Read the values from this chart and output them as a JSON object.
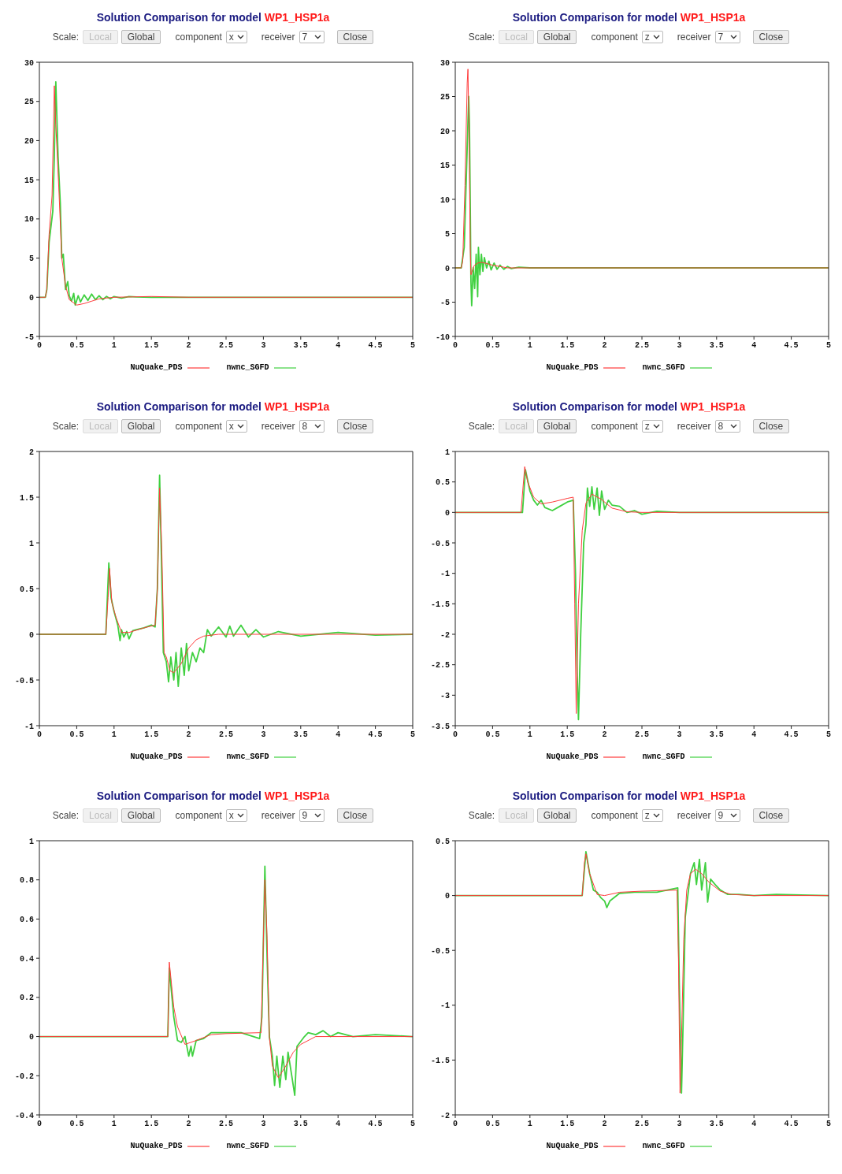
{
  "chart_data": [
    {
      "type": "line",
      "title": "Solution Comparison for model WP1_HSP1a",
      "annotations": [
        "Scale:",
        "Local",
        "Global",
        "component",
        "x",
        "receiver",
        "7",
        "Close"
      ],
      "legend": "bottom",
      "xlim": [
        0,
        5
      ],
      "xticks": [
        0,
        0.5,
        1,
        1.5,
        2,
        2.5,
        3,
        3.5,
        4,
        4.5,
        5
      ],
      "ylim": [
        -5,
        30
      ],
      "yticks": [
        -5,
        0,
        5,
        10,
        15,
        20,
        25,
        30
      ],
      "series": [
        {
          "name": "NuQuake_PDS",
          "color": "#ff3b3b",
          "x": [
            0,
            0.08,
            0.1,
            0.13,
            0.17,
            0.2,
            0.22,
            0.26,
            0.3,
            0.35,
            0.4,
            0.5,
            0.6,
            0.7,
            0.8,
            0.9,
            1.0,
            1.5,
            2,
            5
          ],
          "values": [
            0,
            0,
            1,
            8,
            13,
            27,
            22,
            14,
            5,
            1.5,
            -0.3,
            -1,
            -0.8,
            -0.5,
            -0.2,
            -0.1,
            0,
            0.1,
            0,
            0
          ]
        },
        {
          "name": "nwnc_SGFD",
          "color": "#40d040",
          "x": [
            0,
            0.08,
            0.1,
            0.13,
            0.18,
            0.2,
            0.22,
            0.25,
            0.28,
            0.3,
            0.32,
            0.35,
            0.38,
            0.4,
            0.43,
            0.46,
            0.48,
            0.52,
            0.55,
            0.6,
            0.65,
            0.7,
            0.75,
            0.8,
            0.85,
            0.9,
            0.95,
            1.0,
            1.1,
            1.2,
            1.3,
            1.5,
            5
          ],
          "values": [
            0,
            0,
            1,
            7,
            11,
            18,
            27.5,
            18,
            12,
            5,
            5.5,
            1,
            2,
            0.2,
            -0.5,
            0.5,
            -1,
            0.2,
            -0.6,
            0.3,
            -0.4,
            0.4,
            -0.3,
            0.2,
            -0.3,
            0.1,
            -0.2,
            0.1,
            -0.1,
            0.1,
            0.05,
            0,
            0
          ]
        }
      ]
    },
    {
      "type": "line",
      "title": "Solution Comparison for model WP1_HSP1a",
      "annotations": [
        "Scale:",
        "Local",
        "Global",
        "component",
        "z",
        "receiver",
        "7",
        "Close"
      ],
      "legend": "bottom",
      "xlim": [
        0,
        5
      ],
      "xticks": [
        0,
        0.5,
        1,
        1.5,
        2,
        2.5,
        3,
        3.5,
        4,
        4.5,
        5
      ],
      "ylim": [
        -10,
        30
      ],
      "yticks": [
        -10,
        -5,
        0,
        5,
        10,
        15,
        20,
        25,
        30
      ],
      "series": [
        {
          "name": "NuQuake_PDS",
          "color": "#ff3b3b",
          "x": [
            0,
            0.08,
            0.1,
            0.13,
            0.16,
            0.17,
            0.19,
            0.2,
            0.21,
            0.25,
            0.3,
            0.35,
            0.4,
            0.5,
            0.6,
            0.7,
            5
          ],
          "values": [
            0,
            0,
            1,
            12,
            27,
            29,
            15,
            3,
            -1,
            0.3,
            0.7,
            0.8,
            0.7,
            0.4,
            0.2,
            0,
            0
          ]
        },
        {
          "name": "nwnc_SGFD",
          "color": "#40d040",
          "x": [
            0,
            0.08,
            0.12,
            0.15,
            0.18,
            0.19,
            0.2,
            0.21,
            0.22,
            0.24,
            0.26,
            0.28,
            0.3,
            0.31,
            0.33,
            0.35,
            0.37,
            0.39,
            0.42,
            0.45,
            0.48,
            0.52,
            0.56,
            0.6,
            0.65,
            0.7,
            0.75,
            0.85,
            1,
            5
          ],
          "values": [
            0,
            0,
            3,
            14,
            25,
            21,
            10,
            -2,
            -5.5,
            0,
            -3,
            2,
            -4.2,
            3,
            -1,
            2,
            -0.5,
            1.5,
            0,
            1,
            -0.3,
            0.7,
            -0.2,
            0.4,
            -0.2,
            0.2,
            -0.1,
            0.1,
            0,
            0
          ]
        }
      ]
    },
    {
      "type": "line",
      "title": "Solution Comparison for model WP1_HSP1a",
      "annotations": [
        "Scale:",
        "Local",
        "Global",
        "component",
        "x",
        "receiver",
        "8",
        "Close"
      ],
      "legend": "bottom",
      "xlim": [
        0,
        5
      ],
      "xticks": [
        0,
        0.5,
        1,
        1.5,
        2,
        2.5,
        3,
        3.5,
        4,
        4.5,
        5
      ],
      "ylim": [
        -1,
        2
      ],
      "yticks": [
        -1,
        -0.5,
        0,
        0.5,
        1,
        1.5,
        2
      ],
      "series": [
        {
          "name": "NuQuake_PDS",
          "color": "#ff3b3b",
          "x": [
            0,
            0.89,
            0.92,
            0.94,
            0.97,
            1.02,
            1.1,
            1.2,
            1.4,
            1.55,
            1.58,
            1.61,
            1.64,
            1.67,
            1.7,
            1.75,
            1.8,
            1.9,
            2.0,
            2.1,
            2.2,
            2.4,
            5
          ],
          "values": [
            0,
            0,
            0.4,
            0.72,
            0.35,
            0.2,
            0.02,
            0.02,
            0.07,
            0.1,
            0.5,
            1.6,
            0.9,
            -0.2,
            -0.25,
            -0.4,
            -0.42,
            -0.32,
            -0.15,
            -0.06,
            -0.02,
            0,
            0
          ]
        },
        {
          "name": "nwnc_SGFD",
          "color": "#40d040",
          "x": [
            0,
            0.89,
            0.93,
            0.96,
            1.0,
            1.05,
            1.08,
            1.1,
            1.13,
            1.17,
            1.2,
            1.25,
            1.3,
            1.4,
            1.5,
            1.55,
            1.58,
            1.61,
            1.63,
            1.66,
            1.7,
            1.73,
            1.76,
            1.8,
            1.83,
            1.86,
            1.9,
            1.94,
            1.97,
            2.0,
            2.05,
            2.1,
            2.15,
            2.2,
            2.25,
            2.3,
            2.4,
            2.5,
            2.55,
            2.6,
            2.7,
            2.8,
            2.9,
            3.0,
            3.2,
            3.5,
            4,
            4.5,
            5
          ],
          "values": [
            0,
            0,
            0.78,
            0.4,
            0.25,
            0.1,
            -0.07,
            0.05,
            -0.03,
            0.03,
            -0.05,
            0.04,
            0.05,
            0.07,
            0.1,
            0.08,
            0.5,
            1.74,
            1.0,
            -0.2,
            -0.3,
            -0.52,
            -0.25,
            -0.5,
            -0.2,
            -0.57,
            -0.15,
            -0.45,
            -0.1,
            -0.4,
            -0.2,
            -0.3,
            -0.15,
            -0.2,
            0.05,
            -0.02,
            0.08,
            -0.03,
            0.09,
            -0.02,
            0.1,
            -0.03,
            0.05,
            -0.03,
            0.03,
            -0.02,
            0.02,
            -0.01,
            0
          ]
        }
      ]
    },
    {
      "type": "line",
      "title": "Solution Comparison for model WP1_HSP1a",
      "annotations": [
        "Scale:",
        "Local",
        "Global",
        "component",
        "z",
        "receiver",
        "8",
        "Close"
      ],
      "legend": "bottom",
      "xlim": [
        0,
        5
      ],
      "xticks": [
        0,
        0.5,
        1,
        1.5,
        2,
        2.5,
        3,
        3.5,
        4,
        4.5,
        5
      ],
      "ylim": [
        -3.5,
        1
      ],
      "yticks": [
        -3.5,
        -3,
        -2.5,
        -2,
        -1.5,
        -1,
        -0.5,
        0,
        0.5,
        1
      ],
      "series": [
        {
          "name": "NuQuake_PDS",
          "color": "#ff3b3b",
          "x": [
            0,
            0.88,
            0.93,
            0.97,
            1.05,
            1.15,
            1.3,
            1.5,
            1.58,
            1.6,
            1.62,
            1.65,
            1.7,
            1.75,
            1.83,
            1.95,
            2.1,
            2.3,
            2.5,
            5
          ],
          "values": [
            0,
            0,
            0.75,
            0.5,
            0.25,
            0.14,
            0.17,
            0.23,
            0.25,
            -1.5,
            -3.3,
            -1.5,
            -0.3,
            0.15,
            0.3,
            0.22,
            0.07,
            0.01,
            0,
            0
          ]
        },
        {
          "name": "nwnc_SGFD",
          "color": "#40d040",
          "x": [
            0,
            0.9,
            0.94,
            1.0,
            1.05,
            1.1,
            1.15,
            1.2,
            1.3,
            1.4,
            1.5,
            1.58,
            1.61,
            1.63,
            1.65,
            1.68,
            1.72,
            1.75,
            1.77,
            1.8,
            1.83,
            1.86,
            1.9,
            1.93,
            1.96,
            2.0,
            2.05,
            2.1,
            2.2,
            2.3,
            2.4,
            2.5,
            2.7,
            3,
            5
          ],
          "values": [
            0,
            0,
            0.7,
            0.35,
            0.2,
            0.12,
            0.2,
            0.08,
            0.03,
            0.1,
            0.17,
            0.2,
            -1.0,
            -2.5,
            -3.4,
            -2.0,
            -0.5,
            -0.2,
            0.4,
            0.1,
            0.42,
            0.05,
            0.4,
            -0.05,
            0.35,
            0.05,
            0.2,
            0.12,
            0.1,
            0,
            0.03,
            -0.03,
            0.02,
            0,
            0
          ]
        }
      ]
    },
    {
      "type": "line",
      "title": "Solution Comparison for model WP1_HSP1a",
      "annotations": [
        "Scale:",
        "Local",
        "Global",
        "component",
        "x",
        "receiver",
        "9",
        "Close"
      ],
      "legend": "bottom",
      "xlim": [
        0,
        5
      ],
      "xticks": [
        0,
        0.5,
        1,
        1.5,
        2,
        2.5,
        3,
        3.5,
        4,
        4.5,
        5
      ],
      "ylim": [
        -0.4,
        1
      ],
      "yticks": [
        -0.4,
        -0.2,
        0,
        0.2,
        0.4,
        0.6,
        0.8,
        1
      ],
      "series": [
        {
          "name": "NuQuake_PDS",
          "color": "#ff3b3b",
          "x": [
            0,
            1.72,
            1.74,
            1.8,
            1.85,
            1.95,
            2.1,
            2.3,
            2.5,
            2.97,
            3.0,
            3.02,
            3.05,
            3.08,
            3.12,
            3.2,
            3.3,
            3.4,
            3.5,
            3.7,
            5
          ],
          "values": [
            0,
            0,
            0.38,
            0.15,
            0.05,
            -0.04,
            -0.02,
            0.01,
            0.015,
            0.02,
            0.5,
            0.8,
            0.5,
            0,
            -0.15,
            -0.21,
            -0.15,
            -0.08,
            -0.04,
            0,
            0
          ]
        },
        {
          "name": "nwnc_SGFD",
          "color": "#40d040",
          "x": [
            0,
            1.72,
            1.74,
            1.8,
            1.85,
            1.9,
            1.95,
            2.0,
            2.03,
            2.05,
            2.1,
            2.2,
            2.3,
            2.5,
            2.7,
            2.95,
            2.98,
            3.02,
            3.05,
            3.08,
            3.12,
            3.15,
            3.18,
            3.22,
            3.26,
            3.3,
            3.33,
            3.38,
            3.42,
            3.45,
            3.55,
            3.6,
            3.7,
            3.8,
            3.9,
            4.0,
            4.2,
            4.5,
            5
          ],
          "values": [
            0,
            0,
            0.35,
            0.1,
            -0.02,
            -0.03,
            0,
            -0.1,
            -0.05,
            -0.1,
            -0.02,
            -0.01,
            0.02,
            0.02,
            0.02,
            -0.01,
            0.1,
            0.87,
            0.4,
            0,
            -0.1,
            -0.25,
            -0.1,
            -0.26,
            -0.1,
            -0.22,
            -0.08,
            -0.2,
            -0.3,
            -0.05,
            0,
            0.02,
            0.01,
            0.03,
            0,
            0.02,
            0,
            0.01,
            0
          ]
        }
      ]
    },
    {
      "type": "line",
      "title": "Solution Comparison for model WP1_HSP1a",
      "annotations": [
        "Scale:",
        "Local",
        "Global",
        "component",
        "z",
        "receiver",
        "9",
        "Close"
      ],
      "legend": "bottom",
      "xlim": [
        0,
        5
      ],
      "xticks": [
        0,
        0.5,
        1,
        1.5,
        2,
        2.5,
        3,
        3.5,
        4,
        4.5,
        5
      ],
      "ylim": [
        -2,
        0.5
      ],
      "yticks": [
        -2,
        -1.5,
        -1,
        -0.5,
        0,
        0.5
      ],
      "series": [
        {
          "name": "NuQuake_PDS",
          "color": "#ff3b3b",
          "x": [
            0,
            1.7,
            1.73,
            1.75,
            1.8,
            1.9,
            2.0,
            2.2,
            2.5,
            2.97,
            2.99,
            3.01,
            3.03,
            3.06,
            3.1,
            3.15,
            3.22,
            3.3,
            3.4,
            3.55,
            3.7,
            4,
            5
          ],
          "values": [
            0,
            0,
            0.3,
            0.38,
            0.2,
            0.01,
            0,
            0.03,
            0.04,
            0.05,
            -0.6,
            -1.8,
            -1.3,
            -0.4,
            0.05,
            0.2,
            0.24,
            0.2,
            0.12,
            0.04,
            0.01,
            0,
            0
          ]
        },
        {
          "name": "nwnc_SGFD",
          "color": "#40d040",
          "x": [
            0,
            1.7,
            1.75,
            1.8,
            1.85,
            1.9,
            1.95,
            2.0,
            2.03,
            2.07,
            2.2,
            2.4,
            2.7,
            2.98,
            3.0,
            3.03,
            3.05,
            3.08,
            3.12,
            3.15,
            3.2,
            3.23,
            3.27,
            3.3,
            3.35,
            3.38,
            3.42,
            3.48,
            3.55,
            3.65,
            3.8,
            4,
            4.3,
            5
          ],
          "values": [
            0,
            0,
            0.4,
            0.2,
            0.05,
            0.03,
            -0.02,
            -0.05,
            -0.11,
            -0.05,
            0.02,
            0.03,
            0.03,
            0.07,
            -0.8,
            -1.8,
            -1.2,
            -0.2,
            0.03,
            0.2,
            0.3,
            0.1,
            0.33,
            0.05,
            0.3,
            -0.06,
            0.15,
            0.1,
            0.05,
            0.01,
            0.01,
            0,
            0.01,
            0
          ]
        }
      ]
    }
  ]
}
